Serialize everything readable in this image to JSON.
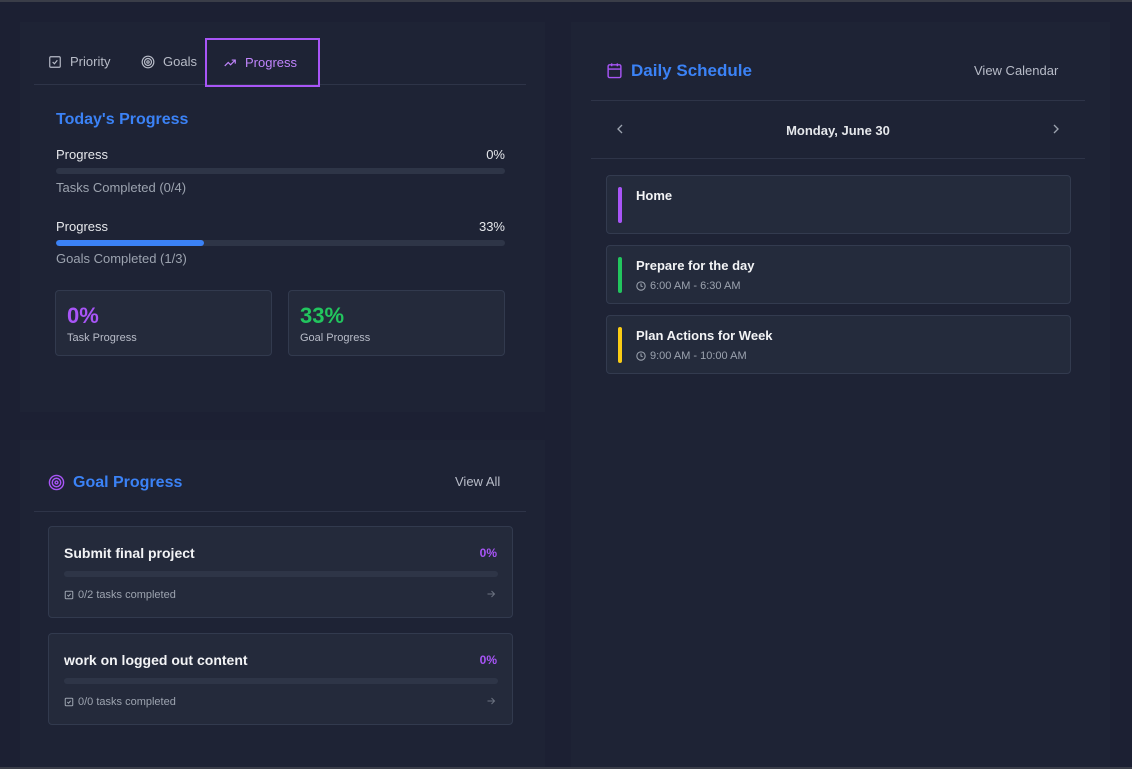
{
  "colors": {
    "accent_blue": "#3b82f6",
    "accent_purple": "#a855f7",
    "accent_green": "#22c55e",
    "background": "#1c2033"
  },
  "tabs": [
    {
      "label": "Priority",
      "icon": "checkbox-icon"
    },
    {
      "label": "Goals",
      "icon": "target-icon"
    },
    {
      "label": "Progress",
      "icon": "trending-up-icon",
      "active": true
    }
  ],
  "progress": {
    "title": "Today's Progress",
    "bars": [
      {
        "label": "Progress",
        "value_text": "0%",
        "value": 0,
        "sub": "Tasks Completed (0/4)"
      },
      {
        "label": "Progress",
        "value_text": "33%",
        "value": 33,
        "sub": "Goals Completed (1/3)"
      }
    ],
    "stats": [
      {
        "value": "0%",
        "label": "Task Progress",
        "color": "#a855f7"
      },
      {
        "value": "33%",
        "label": "Goal Progress",
        "color": "#22c55e"
      }
    ]
  },
  "schedule": {
    "title": "Daily Schedule",
    "view_link": "View Calendar",
    "date": "Monday, June 30",
    "events": [
      {
        "title": "Home",
        "time": "",
        "color": "#a855f7"
      },
      {
        "title": "Prepare for the day",
        "time": "6:00 AM - 6:30 AM",
        "color": "#22c55e"
      },
      {
        "title": "Plan Actions for Week",
        "time": "9:00 AM - 10:00 AM",
        "color": "#facc15"
      }
    ]
  },
  "goals": {
    "title": "Goal Progress",
    "view_link": "View All",
    "items": [
      {
        "title": "Submit final project",
        "pct": "0%",
        "progress": 0,
        "tasks": "0/2 tasks completed"
      },
      {
        "title": "work on logged out content",
        "pct": "0%",
        "progress": 0,
        "tasks": "0/0 tasks completed"
      }
    ]
  }
}
